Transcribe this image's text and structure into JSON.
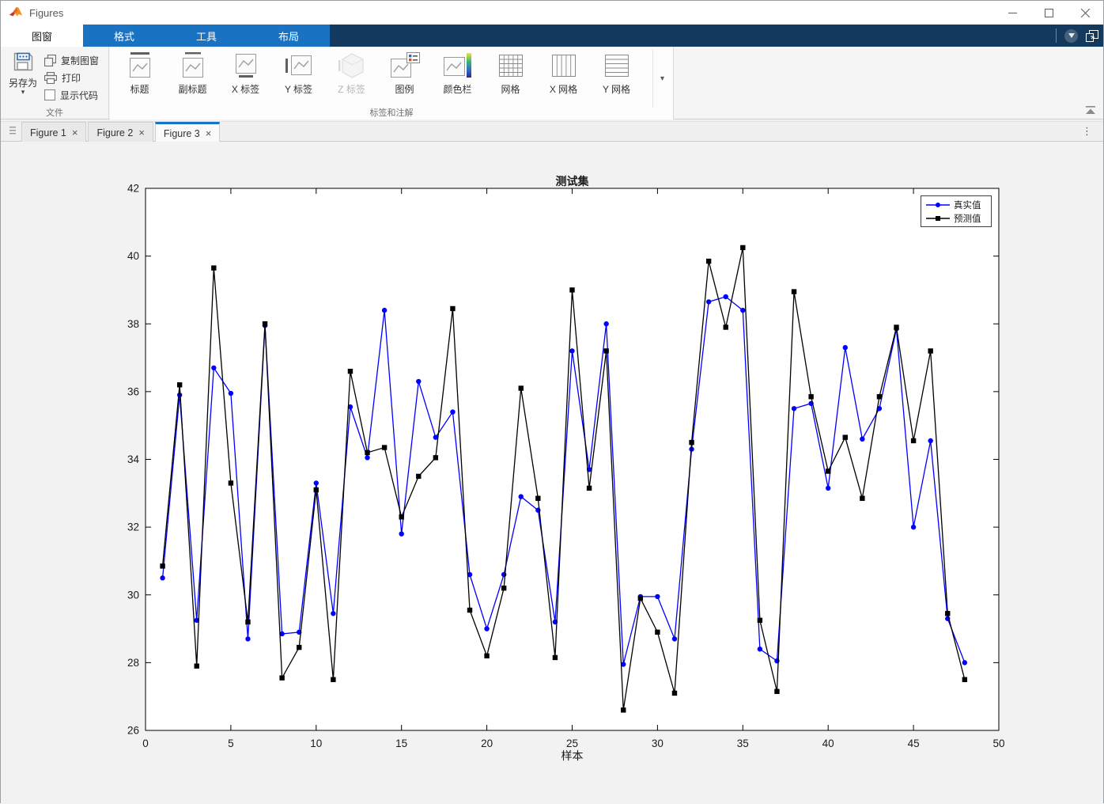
{
  "window": {
    "title": "Figures"
  },
  "glyphs": {
    "close": "×",
    "overflow_vertical": "⋮",
    "caret_down": "▾"
  },
  "ribbon": {
    "tabs": [
      {
        "label": "图窗",
        "active": true
      },
      {
        "label": "格式",
        "active": false
      },
      {
        "label": "工具",
        "active": false
      },
      {
        "label": "布局",
        "active": false
      }
    ],
    "file_group": {
      "group_label": "文件",
      "save_as": "另存为",
      "copy_figure": "复制图窗",
      "print": "打印",
      "show_code": "显示代码",
      "show_code_checked": false
    },
    "annotation_group": {
      "group_label": "标签和注解",
      "buttons": [
        "标题",
        "副标题",
        "X 标签",
        "Y 标签",
        "Z 标签",
        "图例",
        "颜色栏",
        "网格",
        "X 网格",
        "Y 网格"
      ],
      "disabled_button": "Z 标签"
    }
  },
  "figure_tabs": [
    {
      "label": "Figure 1",
      "active": false
    },
    {
      "label": "Figure 2",
      "active": false
    },
    {
      "label": "Figure 3",
      "active": true
    }
  ],
  "chart_data": {
    "type": "line",
    "title": "测试集",
    "xlabel": "样本",
    "ylabel": "",
    "xlim": [
      0,
      50
    ],
    "ylim": [
      26,
      42
    ],
    "xticks": [
      0,
      5,
      10,
      15,
      20,
      25,
      30,
      35,
      40,
      45,
      50
    ],
    "yticks": [
      26,
      28,
      30,
      32,
      34,
      36,
      38,
      40,
      42
    ],
    "grid": false,
    "legend_position": "top-right",
    "x": [
      1,
      2,
      3,
      4,
      5,
      6,
      7,
      8,
      9,
      10,
      11,
      12,
      13,
      14,
      15,
      16,
      17,
      18,
      19,
      20,
      21,
      22,
      23,
      24,
      25,
      26,
      27,
      28,
      29,
      30,
      31,
      32,
      33,
      34,
      35,
      36,
      37,
      38,
      39,
      40,
      41,
      42,
      43,
      44,
      45,
      46,
      47,
      48
    ],
    "series": [
      {
        "name": "真实值",
        "color": "#0000ff",
        "marker": "circle",
        "values": [
          30.5,
          35.9,
          29.25,
          36.7,
          35.95,
          28.7,
          37.95,
          28.85,
          28.9,
          33.3,
          29.45,
          35.55,
          34.05,
          38.4,
          31.8,
          36.3,
          34.65,
          35.4,
          30.6,
          29.0,
          30.6,
          32.9,
          32.5,
          29.2,
          37.2,
          33.7,
          38.0,
          27.95,
          29.95,
          29.95,
          28.7,
          34.3,
          38.65,
          38.8,
          38.4,
          28.4,
          28.05,
          35.5,
          35.65,
          33.15,
          37.3,
          34.6,
          35.5,
          37.85,
          32.0,
          34.55,
          29.3,
          28.0
        ]
      },
      {
        "name": "预测值",
        "color": "#000000",
        "marker": "square",
        "values": [
          30.85,
          36.2,
          27.9,
          39.65,
          33.3,
          29.2,
          38.0,
          27.55,
          28.45,
          33.1,
          27.5,
          36.6,
          34.2,
          34.35,
          32.3,
          33.5,
          34.05,
          38.45,
          29.55,
          28.2,
          30.2,
          36.1,
          32.85,
          28.15,
          39.0,
          33.15,
          37.2,
          26.6,
          29.9,
          28.9,
          27.1,
          34.5,
          39.85,
          37.9,
          40.25,
          29.25,
          27.15,
          38.95,
          35.85,
          33.65,
          34.65,
          32.85,
          35.85,
          37.9,
          34.55,
          37.2,
          29.45,
          27.5
        ]
      }
    ]
  }
}
